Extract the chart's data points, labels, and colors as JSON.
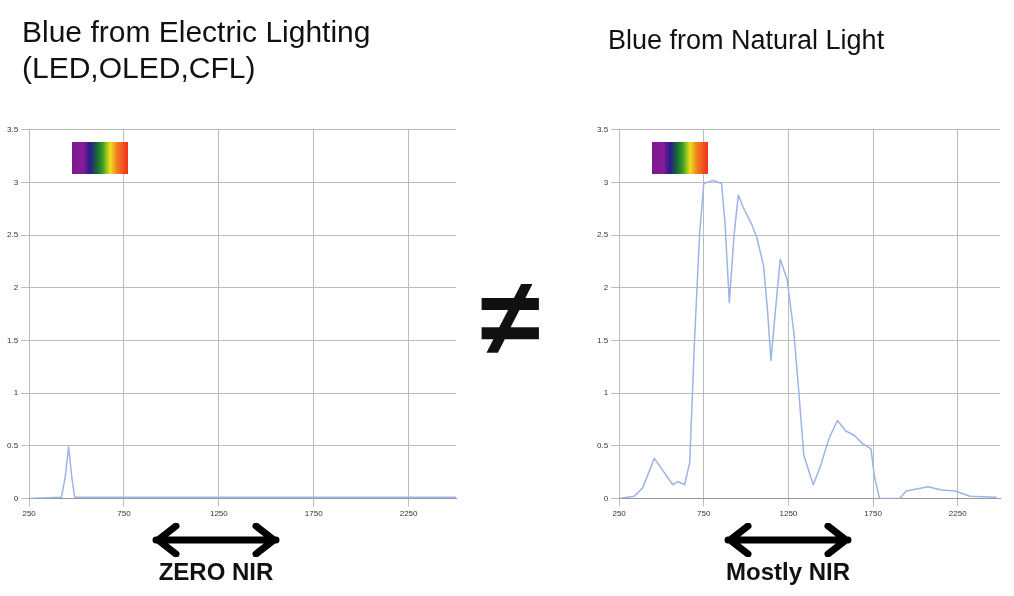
{
  "chart_data": [
    {
      "type": "line",
      "title": "Blue from Electric Lighting\n(LED,OLED,CFL)",
      "xlim": [
        250,
        2500
      ],
      "xticks": [
        250,
        750,
        1250,
        1750,
        2250
      ],
      "ylim": [
        0,
        3.5
      ],
      "yticks": [
        0,
        0.5,
        1,
        1.5,
        2,
        2.5,
        3,
        3.5
      ],
      "grid": true,
      "marker": "none",
      "line_style": "solid",
      "annotations": [
        "ZERO NIR",
        "≠"
      ],
      "series": [
        {
          "color": "#9db4e6",
          "x": [
            250,
            420,
            440,
            458,
            475,
            490,
            2500
          ],
          "values": [
            0,
            0.01,
            0.2,
            0.49,
            0.2,
            0.01,
            0.01
          ]
        }
      ]
    },
    {
      "type": "line",
      "title": "Blue from Natural Light",
      "xlim": [
        250,
        2500
      ],
      "xticks": [
        250,
        750,
        1250,
        1750,
        2250
      ],
      "ylim": [
        0,
        3.5
      ],
      "yticks": [
        0,
        0.5,
        1,
        1.5,
        2,
        2.5,
        3,
        3.5
      ],
      "grid": true,
      "marker": "none",
      "line_style": "solid",
      "annotations": [
        "Mostly NIR"
      ],
      "series": [
        {
          "color": "#9db4e6",
          "x": [
            250,
            339,
            389,
            458,
            567,
            597,
            637,
            667,
            696,
            726,
            750,
            806,
            855,
            875,
            901,
            929,
            954,
            984,
            1034,
            1063,
            1103,
            1127,
            1147,
            1173,
            1202,
            1242,
            1282,
            1312,
            1341,
            1397,
            1440,
            1490,
            1540,
            1589,
            1639,
            1688,
            1738,
            1758,
            1788,
            1907,
            1946,
            2075,
            2155,
            2234,
            2323,
            2480
          ],
          "values": [
            0,
            0.02,
            0.1,
            0.38,
            0.13,
            0.16,
            0.13,
            0.34,
            1.52,
            2.53,
            2.99,
            3.02,
            2.99,
            2.63,
            1.86,
            2.5,
            2.88,
            2.76,
            2.6,
            2.48,
            2.21,
            1.78,
            1.31,
            1.78,
            2.27,
            2.08,
            1.58,
            1.0,
            0.41,
            0.13,
            0.31,
            0.57,
            0.74,
            0.64,
            0.6,
            0.52,
            0.47,
            0.21,
            0,
            0,
            0.07,
            0.11,
            0.08,
            0.07,
            0.02,
            0.01
          ]
        }
      ]
    }
  ]
}
